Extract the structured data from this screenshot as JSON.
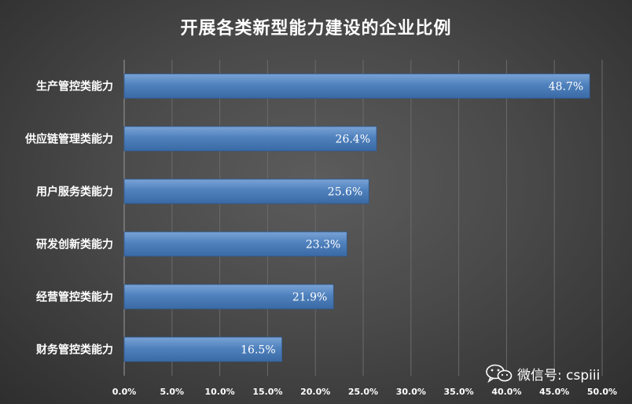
{
  "chart_data": {
    "type": "bar",
    "orientation": "horizontal",
    "title": "开展各类新型能力建设的企业比例",
    "categories": [
      "生产管控类能力",
      "供应链管理类能力",
      "用户服务类能力",
      "研发创新类能力",
      "经营管控类能力",
      "财务管控类能力"
    ],
    "values": [
      48.7,
      26.4,
      25.6,
      23.3,
      21.9,
      16.5
    ],
    "value_labels": [
      "48.7%",
      "26.4%",
      "25.6%",
      "23.3%",
      "21.9%",
      "16.5%"
    ],
    "xlim": [
      0,
      50
    ],
    "x_ticks": [
      "0.0%",
      "5.0%",
      "10.0%",
      "15.0%",
      "20.0%",
      "25.0%",
      "30.0%",
      "35.0%",
      "40.0%",
      "45.0%",
      "50.0%"
    ],
    "grid": true,
    "bar_color": "#4f81bd"
  },
  "watermark": {
    "icon": "wechat-icon",
    "text": "微信号: cspiii"
  }
}
